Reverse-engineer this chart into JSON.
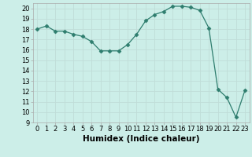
{
  "x": [
    0,
    1,
    2,
    3,
    4,
    5,
    6,
    7,
    8,
    9,
    10,
    11,
    12,
    13,
    14,
    15,
    16,
    17,
    18,
    19,
    20,
    21,
    22,
    23
  ],
  "y": [
    18.0,
    18.3,
    17.8,
    17.8,
    17.5,
    17.3,
    16.8,
    15.9,
    15.9,
    15.9,
    16.5,
    17.5,
    18.8,
    19.4,
    19.7,
    20.2,
    20.2,
    20.1,
    19.8,
    18.1,
    12.2,
    11.4,
    9.5,
    12.1
  ],
  "xlim": [
    -0.5,
    23.5
  ],
  "ylim": [
    9,
    20.5
  ],
  "yticks": [
    9,
    10,
    11,
    12,
    13,
    14,
    15,
    16,
    17,
    18,
    19,
    20
  ],
  "xticks": [
    0,
    1,
    2,
    3,
    4,
    5,
    6,
    7,
    8,
    9,
    10,
    11,
    12,
    13,
    14,
    15,
    16,
    17,
    18,
    19,
    20,
    21,
    22,
    23
  ],
  "xlabel": "Humidex (Indice chaleur)",
  "line_color": "#2e7d6e",
  "marker": "D",
  "marker_size": 2.5,
  "bg_color": "#cceee8",
  "grid_color": "#c0ddd8",
  "label_fontsize": 7.5,
  "tick_fontsize": 6.0
}
